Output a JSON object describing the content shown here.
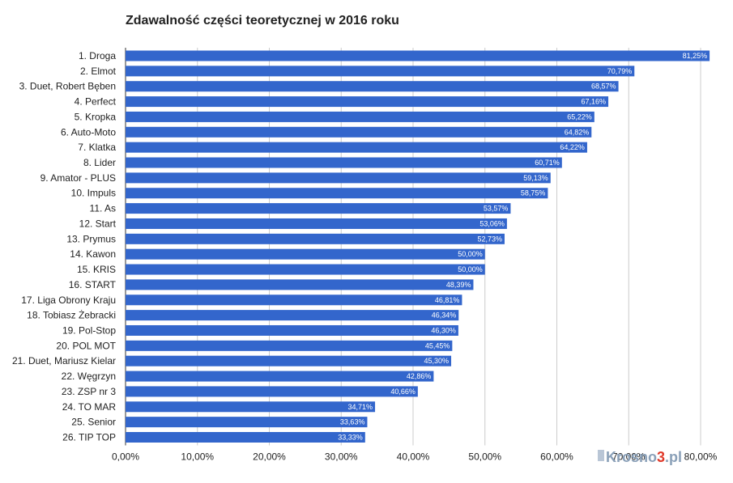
{
  "watermark": {
    "text_main": "Krosno",
    "text_num": "3",
    "text_tld": ".pl",
    "colors": {
      "main": "#8aa0b8",
      "accent": "#e03a2a"
    }
  },
  "chart_data": {
    "type": "bar",
    "orientation": "horizontal",
    "title": "Zdawalność części teoretycznej w 2016 roku",
    "xlabel": "",
    "ylabel": "",
    "xlim": [
      0,
      80
    ],
    "grid": true,
    "legend": "none",
    "bar_color": "#3366cc",
    "categories": [
      "1. Droga",
      "2. Elmot",
      "3. Duet, Robert Bęben",
      "4. Perfect",
      "5. Kropka",
      "6. Auto-Moto",
      "7. Klatka",
      "8. Lider",
      "9. Amator - PLUS",
      "10. Impuls",
      "11. As",
      "12. Start",
      "13. Prymus",
      "14. Kawon",
      "15. KRIS",
      "16. START",
      "17. Liga Obrony Kraju",
      "18. Tobiasz Żebracki",
      "19. Pol-Stop",
      "20. POL MOT",
      "21. Duet, Mariusz Kielar",
      "22. Węgrzyn",
      "23. ZSP nr 3",
      "24. TO MAR",
      "25. Senior",
      "26. TIP TOP"
    ],
    "values": [
      81.25,
      70.79,
      68.57,
      67.16,
      65.22,
      64.82,
      64.22,
      60.71,
      59.13,
      58.75,
      53.57,
      53.06,
      52.73,
      50.0,
      50.0,
      48.39,
      46.81,
      46.34,
      46.3,
      45.45,
      45.3,
      42.86,
      40.66,
      34.71,
      33.63,
      33.33
    ],
    "value_labels": [
      "81,25%",
      "70,79%",
      "68,57%",
      "67,16%",
      "65,22%",
      "64,82%",
      "64,22%",
      "60,71%",
      "59,13%",
      "58,75%",
      "53,57%",
      "53,06%",
      "52,73%",
      "50,00%",
      "50,00%",
      "48,39%",
      "46,81%",
      "46,34%",
      "46,30%",
      "45,45%",
      "45,30%",
      "42,86%",
      "40,66%",
      "34,71%",
      "33,63%",
      "33,33%"
    ],
    "x_ticks": [
      0,
      10,
      20,
      30,
      40,
      50,
      60,
      70,
      80
    ],
    "x_tick_labels": [
      "0,00%",
      "10,00%",
      "20,00%",
      "30,00%",
      "40,00%",
      "50,00%",
      "60,00%",
      "70,00%",
      "80,00%"
    ]
  }
}
